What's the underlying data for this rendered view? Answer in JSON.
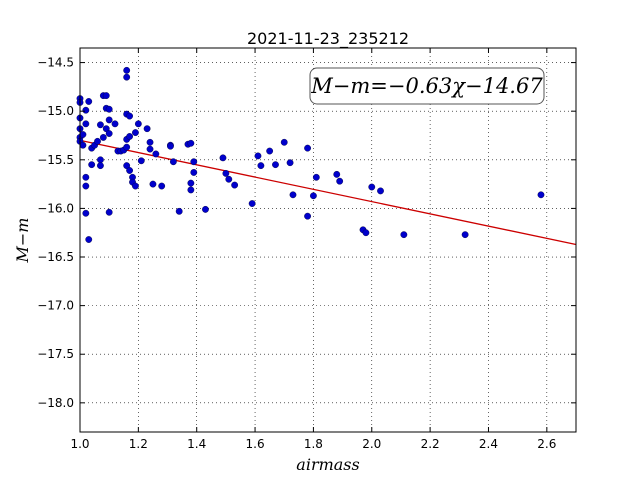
{
  "chart_data": {
    "type": "scatter",
    "title": "2021-11-23_235212",
    "xlabel": "airmass",
    "ylabel": "M−m",
    "xlim": [
      1.0,
      2.7
    ],
    "ylim": [
      -18.3,
      -14.35
    ],
    "y_inverted": true,
    "grid": true,
    "x_ticks": [
      1.0,
      1.2,
      1.4,
      1.6,
      1.8,
      2.0,
      2.2,
      2.4,
      2.6
    ],
    "x_tick_labels": [
      "1.0",
      "1.2",
      "1.4",
      "1.6",
      "1.8",
      "2.0",
      "2.2",
      "2.4",
      "2.6"
    ],
    "y_ticks": [
      -14.5,
      -15.0,
      -15.5,
      -16.0,
      -16.5,
      -17.0,
      -17.5,
      -18.0
    ],
    "y_tick_labels": [
      "−14.5",
      "−15.0",
      "−15.5",
      "−16.0",
      "−16.5",
      "−17.0",
      "−17.5",
      "−18.0"
    ],
    "annotation": "M−m=−0.63χ−14.67",
    "fit": {
      "slope": -0.63,
      "intercept": -14.67,
      "color": "#cc0000"
    },
    "marker_color": "#0000cc",
    "points": [
      [
        1.0,
        -14.87
      ],
      [
        1.0,
        -14.91
      ],
      [
        1.0,
        -15.07
      ],
      [
        1.0,
        -15.18
      ],
      [
        1.0,
        -15.27
      ],
      [
        1.0,
        -15.31
      ],
      [
        1.01,
        -15.24
      ],
      [
        1.01,
        -15.35
      ],
      [
        1.02,
        -14.99
      ],
      [
        1.02,
        -15.13
      ],
      [
        1.02,
        -15.68
      ],
      [
        1.02,
        -15.77
      ],
      [
        1.02,
        -16.05
      ],
      [
        1.03,
        -14.9
      ],
      [
        1.03,
        -16.32
      ],
      [
        1.04,
        -15.38
      ],
      [
        1.04,
        -15.55
      ],
      [
        1.05,
        -15.35
      ],
      [
        1.06,
        -15.31
      ],
      [
        1.07,
        -15.14
      ],
      [
        1.07,
        -15.5
      ],
      [
        1.07,
        -15.56
      ],
      [
        1.08,
        -14.84
      ],
      [
        1.08,
        -15.27
      ],
      [
        1.09,
        -14.84
      ],
      [
        1.09,
        -14.97
      ],
      [
        1.09,
        -15.18
      ],
      [
        1.1,
        -14.98
      ],
      [
        1.1,
        -15.09
      ],
      [
        1.1,
        -15.23
      ],
      [
        1.1,
        -16.04
      ],
      [
        1.12,
        -15.13
      ],
      [
        1.13,
        -15.41
      ],
      [
        1.14,
        -15.41
      ],
      [
        1.15,
        -15.4
      ],
      [
        1.16,
        -14.58
      ],
      [
        1.16,
        -14.65
      ],
      [
        1.16,
        -15.03
      ],
      [
        1.16,
        -15.29
      ],
      [
        1.16,
        -15.37
      ],
      [
        1.16,
        -15.56
      ],
      [
        1.17,
        -15.26
      ],
      [
        1.17,
        -15.61
      ],
      [
        1.17,
        -15.05
      ],
      [
        1.18,
        -15.68
      ],
      [
        1.18,
        -15.73
      ],
      [
        1.19,
        -15.22
      ],
      [
        1.19,
        -15.77
      ],
      [
        1.2,
        -15.13
      ],
      [
        1.21,
        -15.51
      ],
      [
        1.23,
        -15.18
      ],
      [
        1.24,
        -15.39
      ],
      [
        1.24,
        -15.32
      ],
      [
        1.25,
        -15.75
      ],
      [
        1.26,
        -15.44
      ],
      [
        1.28,
        -15.77
      ],
      [
        1.31,
        -15.35
      ],
      [
        1.31,
        -15.36
      ],
      [
        1.32,
        -15.52
      ],
      [
        1.34,
        -16.03
      ],
      [
        1.37,
        -15.34
      ],
      [
        1.38,
        -15.33
      ],
      [
        1.38,
        -15.74
      ],
      [
        1.38,
        -15.81
      ],
      [
        1.39,
        -15.52
      ],
      [
        1.39,
        -15.63
      ],
      [
        1.43,
        -16.01
      ],
      [
        1.49,
        -15.48
      ],
      [
        1.5,
        -15.64
      ],
      [
        1.51,
        -15.7
      ],
      [
        1.53,
        -15.76
      ],
      [
        1.59,
        -15.95
      ],
      [
        1.61,
        -15.46
      ],
      [
        1.62,
        -15.56
      ],
      [
        1.65,
        -15.41
      ],
      [
        1.67,
        -15.55
      ],
      [
        1.7,
        -15.32
      ],
      [
        1.72,
        -15.53
      ],
      [
        1.73,
        -15.86
      ],
      [
        1.78,
        -15.38
      ],
      [
        1.78,
        -16.08
      ],
      [
        1.8,
        -15.87
      ],
      [
        1.81,
        -15.68
      ],
      [
        1.88,
        -15.65
      ],
      [
        1.89,
        -15.72
      ],
      [
        1.97,
        -16.22
      ],
      [
        1.98,
        -16.25
      ],
      [
        2.0,
        -15.78
      ],
      [
        2.03,
        -15.82
      ],
      [
        2.11,
        -16.27
      ],
      [
        2.32,
        -16.27
      ],
      [
        2.58,
        -15.86
      ]
    ]
  }
}
